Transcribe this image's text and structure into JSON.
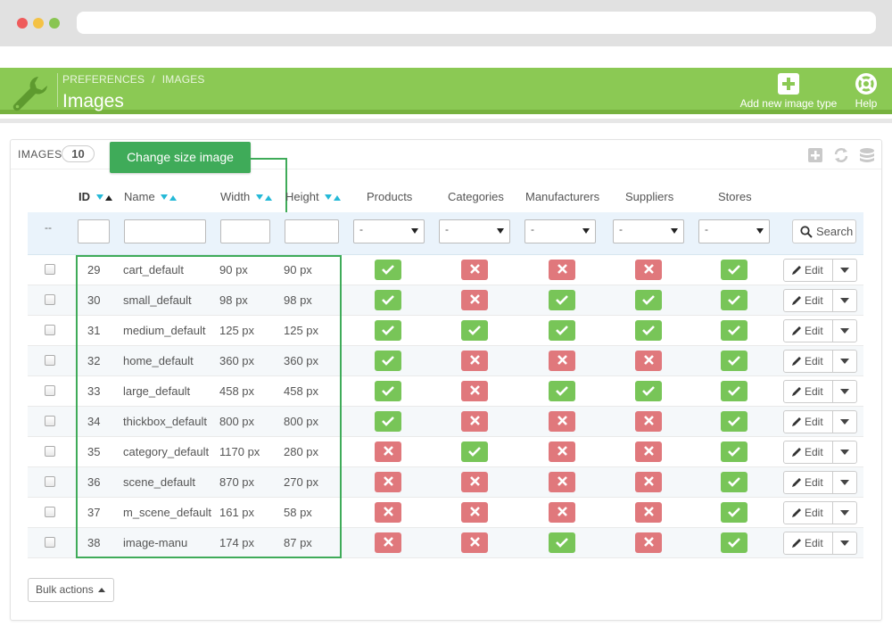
{
  "breadcrumb": {
    "parent": "PREFERENCES",
    "current": "IMAGES"
  },
  "page_title": "Images",
  "header_actions": {
    "add": "Add new image type",
    "help": "Help"
  },
  "panel": {
    "title": "IMAGES",
    "count": "10"
  },
  "callout": "Change size image",
  "columns": {
    "id": "ID",
    "name": "Name",
    "width": "Width",
    "height": "Height",
    "products": "Products",
    "categories": "Categories",
    "manufacturers": "Manufacturers",
    "suppliers": "Suppliers",
    "stores": "Stores"
  },
  "filters": {
    "dash": "--",
    "select_value": "-",
    "search_label": "Search"
  },
  "rows": [
    {
      "id": "29",
      "name": "cart_default",
      "width": "90 px",
      "height": "90 px",
      "products": true,
      "categories": false,
      "manufacturers": false,
      "suppliers": false,
      "stores": true
    },
    {
      "id": "30",
      "name": "small_default",
      "width": "98 px",
      "height": "98 px",
      "products": true,
      "categories": false,
      "manufacturers": true,
      "suppliers": true,
      "stores": true
    },
    {
      "id": "31",
      "name": "medium_default",
      "width": "125 px",
      "height": "125 px",
      "products": true,
      "categories": true,
      "manufacturers": true,
      "suppliers": true,
      "stores": true
    },
    {
      "id": "32",
      "name": "home_default",
      "width": "360 px",
      "height": "360 px",
      "products": true,
      "categories": false,
      "manufacturers": false,
      "suppliers": false,
      "stores": true
    },
    {
      "id": "33",
      "name": "large_default",
      "width": "458 px",
      "height": "458 px",
      "products": true,
      "categories": false,
      "manufacturers": true,
      "suppliers": true,
      "stores": true
    },
    {
      "id": "34",
      "name": "thickbox_default",
      "width": "800 px",
      "height": "800 px",
      "products": true,
      "categories": false,
      "manufacturers": false,
      "suppliers": false,
      "stores": true
    },
    {
      "id": "35",
      "name": "category_default",
      "width": "1170 px",
      "height": "280 px",
      "products": false,
      "categories": true,
      "manufacturers": false,
      "suppliers": false,
      "stores": true
    },
    {
      "id": "36",
      "name": "scene_default",
      "width": "870 px",
      "height": "270 px",
      "products": false,
      "categories": false,
      "manufacturers": false,
      "suppliers": false,
      "stores": true
    },
    {
      "id": "37",
      "name": "m_scene_default",
      "width": "161 px",
      "height": "58 px",
      "products": false,
      "categories": false,
      "manufacturers": false,
      "suppliers": false,
      "stores": true
    },
    {
      "id": "38",
      "name": "image-manu",
      "width": "174 px",
      "height": "87 px",
      "products": false,
      "categories": false,
      "manufacturers": true,
      "suppliers": false,
      "stores": true
    }
  ],
  "row_actions": {
    "edit": "Edit"
  },
  "bulk_actions": "Bulk actions",
  "colors": {
    "header_green": "#8bc954",
    "callout_green": "#3fab59",
    "status_on": "#78c558",
    "status_off": "#e0787c",
    "sort_blue": "#25b9d7"
  },
  "icons": {
    "logo": "wrench-icon",
    "add": "plus-square-icon",
    "help": "lifebuoy-icon",
    "search": "search-icon",
    "edit": "pencil-icon"
  }
}
